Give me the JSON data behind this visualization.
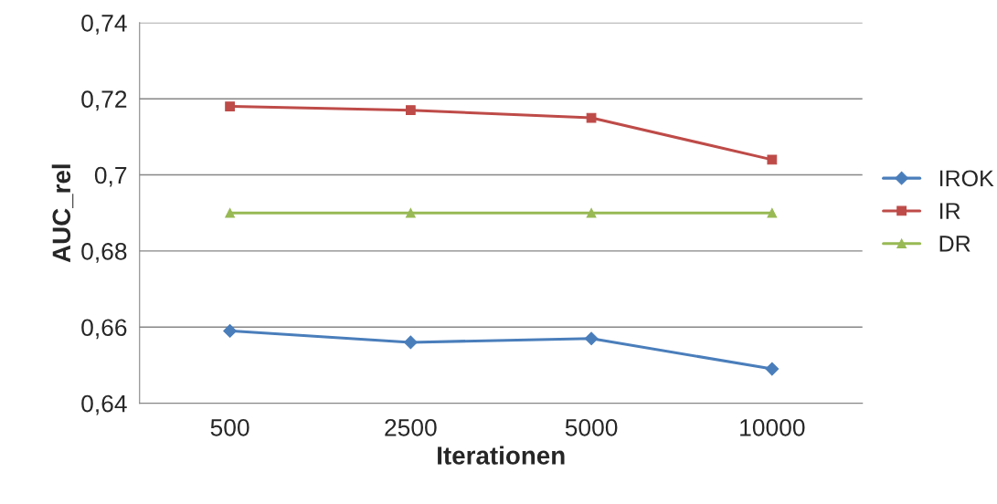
{
  "chart_data": {
    "type": "line",
    "xlabel": "Iterationen",
    "ylabel": "AUC_rel",
    "categories": [
      "500",
      "2500",
      "5000",
      "10000"
    ],
    "series": [
      {
        "name": "IROK",
        "color": "#4a7ebb",
        "marker": "diamond",
        "values": [
          0.659,
          0.656,
          0.657,
          0.649
        ]
      },
      {
        "name": "IR",
        "color": "#be4b48",
        "marker": "square",
        "values": [
          0.718,
          0.717,
          0.715,
          0.704
        ]
      },
      {
        "name": "DR",
        "color": "#98b954",
        "marker": "triangle",
        "values": [
          0.69,
          0.69,
          0.69,
          0.69
        ]
      }
    ],
    "ylim": [
      0.64,
      0.74
    ],
    "yticks": [
      {
        "value": 0.64,
        "label": "0,64"
      },
      {
        "value": 0.66,
        "label": "0,66"
      },
      {
        "value": 0.68,
        "label": "0,68"
      },
      {
        "value": 0.7,
        "label": "0,7"
      },
      {
        "value": 0.72,
        "label": "0,72"
      },
      {
        "value": 0.74,
        "label": "0,74"
      }
    ],
    "grid": "y",
    "legend": "right",
    "line_style": "solid"
  }
}
